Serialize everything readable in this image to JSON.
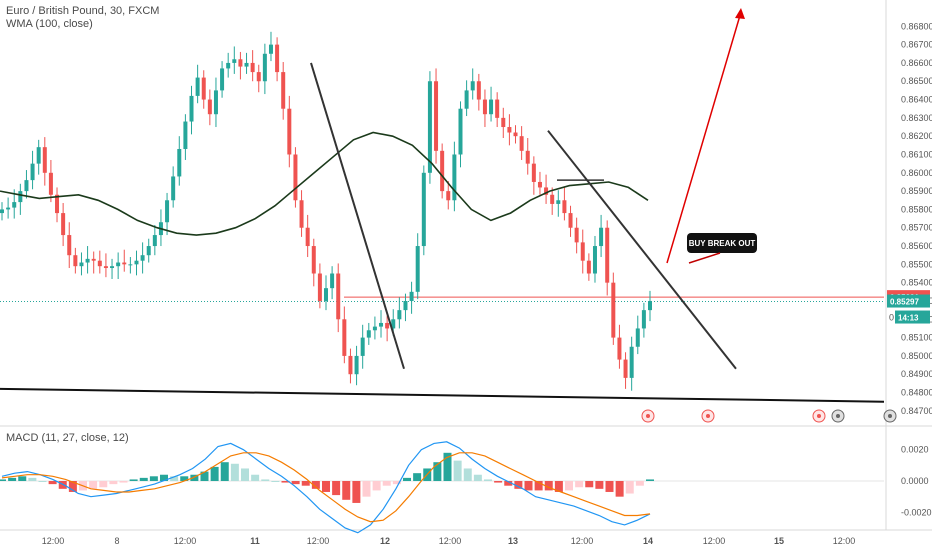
{
  "header": {
    "symbol_line": "Euro / British Pound, 30, FXCM",
    "indicator_line": "WMA (100, close)",
    "macd_label": "MACD (11, 27, close, 12)"
  },
  "annotation": {
    "callout": "BUY BREAK OUT"
  },
  "price_tags": {
    "red": "0.85321",
    "teal": "0.85297",
    "timer": "14:13",
    "timer_prefix": "0"
  },
  "colors": {
    "up": "#26a69a",
    "down": "#ef5350",
    "wma": "#1b3a1b",
    "macd": "#2196f3",
    "signal": "#f57c00",
    "trend": "#333333",
    "arrow": "#e00000",
    "red_tag": "#ef5350",
    "teal_tag": "#26a69a"
  },
  "icons": [
    "event-flag-icon",
    "event-flag-icon",
    "earnings-icon",
    "dividend-icon",
    "settings-icon"
  ],
  "chart_data": [
    {
      "type": "candlestick",
      "title": "Euro / British Pound, 30, FXCM",
      "ylim": [
        0.8465,
        0.869
      ],
      "y_ticks": [
        "0.86800",
        "0.86700",
        "0.86600",
        "0.86500",
        "0.86400",
        "0.86300",
        "0.86200",
        "0.86100",
        "0.86000",
        "0.85900",
        "0.85800",
        "0.85700",
        "0.85600",
        "0.85500",
        "0.85400",
        "0.85300",
        "0.85200",
        "0.85100",
        "0.85000",
        "0.84900",
        "0.84800",
        "0.84700"
      ],
      "x_ticks": [
        "12:00",
        "8",
        "12:00",
        "11",
        "12:00",
        "12",
        "12:00",
        "13",
        "12:00",
        "14",
        "12:00",
        "15",
        "12:00"
      ],
      "close_path": [
        0.858,
        0.8581,
        0.8584,
        0.859,
        0.8596,
        0.8605,
        0.8614,
        0.86,
        0.8588,
        0.8578,
        0.8566,
        0.8555,
        0.8549,
        0.8551,
        0.8553,
        0.8552,
        0.8549,
        0.8548,
        0.8549,
        0.8551,
        0.855,
        0.855,
        0.8552,
        0.8555,
        0.856,
        0.8566,
        0.8573,
        0.8585,
        0.8598,
        0.8613,
        0.8628,
        0.8642,
        0.8652,
        0.864,
        0.8632,
        0.8645,
        0.8657,
        0.866,
        0.8662,
        0.8658,
        0.866,
        0.8655,
        0.865,
        0.8665,
        0.867,
        0.8655,
        0.8635,
        0.861,
        0.8585,
        0.857,
        0.856,
        0.8545,
        0.853,
        0.8537,
        0.8545,
        0.852,
        0.85,
        0.849,
        0.85,
        0.851,
        0.8514,
        0.8516,
        0.8518,
        0.8515,
        0.852,
        0.8525,
        0.853,
        0.8535,
        0.856,
        0.86,
        0.865,
        0.8612,
        0.859,
        0.8585,
        0.861,
        0.8635,
        0.8645,
        0.865,
        0.864,
        0.8632,
        0.864,
        0.863,
        0.8625,
        0.8622,
        0.862,
        0.8612,
        0.8605,
        0.8595,
        0.8592,
        0.8588,
        0.8583,
        0.8585,
        0.8578,
        0.857,
        0.8562,
        0.8552,
        0.8545,
        0.856,
        0.857,
        0.854,
        0.851,
        0.8498,
        0.8488,
        0.8505,
        0.8515,
        0.8525,
        0.853
      ],
      "wma_path": [
        0.859,
        0.8588,
        0.8586,
        0.8587,
        0.8588,
        0.8585,
        0.858,
        0.8574,
        0.857,
        0.8567,
        0.8566,
        0.8567,
        0.857,
        0.8575,
        0.8582,
        0.8591,
        0.86,
        0.8609,
        0.8618,
        0.8622,
        0.862,
        0.8615,
        0.8605,
        0.8592,
        0.858,
        0.8574,
        0.8578,
        0.8585,
        0.859,
        0.8593,
        0.8594,
        0.8595,
        0.8592,
        0.8585
      ],
      "current_price": 0.85297,
      "last_price_line": 0.85321,
      "support_line": [
        [
          0.8482,
          0.8475
        ]
      ],
      "trendlines": [
        {
          "from": 0.866,
          "to": 0.8493
        },
        {
          "from": 0.8623,
          "to": 0.8493
        }
      ]
    },
    {
      "type": "bar",
      "title": "MACD (11, 27, close, 12)",
      "ylim": [
        -0.003,
        0.003
      ],
      "y_ticks": [
        "0.0020",
        "0.0000",
        "-0.0020"
      ],
      "histogram": [
        0.0001,
        0.0002,
        0.0003,
        0.0002,
        0.0,
        -0.0002,
        -0.0005,
        -0.0007,
        -0.0006,
        -0.0005,
        -0.0004,
        -0.0002,
        -0.0001,
        0.0001,
        0.0002,
        0.0003,
        0.0004,
        0.0003,
        0.0003,
        0.0004,
        0.0006,
        0.0009,
        0.0012,
        0.0011,
        0.0008,
        0.0004,
        0.0001,
        0.0,
        -0.0001,
        -0.0002,
        -0.0003,
        -0.0005,
        -0.0007,
        -0.0009,
        -0.0012,
        -0.0014,
        -0.001,
        -0.0006,
        -0.0003,
        -0.0002,
        0.0002,
        0.0005,
        0.0008,
        0.0012,
        0.0018,
        0.0013,
        0.0008,
        0.0004,
        0.0001,
        -0.0001,
        -0.0003,
        -0.0005,
        -0.0006,
        -0.0006,
        -0.0006,
        -0.0007,
        -0.0006,
        -0.0004,
        -0.0004,
        -0.0005,
        -0.0007,
        -0.001,
        -0.0008,
        -0.0003,
        0.0001
      ],
      "macd": [
        0.0003,
        0.0005,
        0.0006,
        0.0004,
        0.0001,
        -0.0003,
        -0.0008,
        -0.001,
        -0.0009,
        -0.0008,
        -0.0006,
        -0.0004,
        -0.0002,
        0.0001,
        0.0004,
        0.0008,
        0.0014,
        0.0022,
        0.0024,
        0.002,
        0.0014,
        0.0008,
        0.0003,
        -0.0003,
        -0.001,
        -0.0018,
        -0.0024,
        -0.003,
        -0.0033,
        -0.0028,
        -0.0018,
        -0.0005,
        0.001,
        0.002,
        0.0024,
        0.0025,
        0.0021,
        0.0014,
        0.0008,
        0.0003,
        -0.0001,
        -0.0005,
        -0.001,
        -0.0012,
        -0.0014,
        -0.0016,
        -0.0019,
        -0.0022,
        -0.0026,
        -0.0028,
        -0.0025,
        -0.0021
      ],
      "signal": [
        0.0002,
        0.0003,
        0.0004,
        0.0004,
        0.0003,
        0.0001,
        -0.0002,
        -0.0005,
        -0.0006,
        -0.0007,
        -0.0007,
        -0.0006,
        -0.0005,
        -0.0003,
        -0.0001,
        0.0002,
        0.0006,
        0.0011,
        0.0016,
        0.0018,
        0.0018,
        0.0016,
        0.0012,
        0.0007,
        0.0001,
        -0.0006,
        -0.0012,
        -0.0018,
        -0.0023,
        -0.0026,
        -0.0025,
        -0.0019,
        -0.001,
        0.0,
        0.0009,
        0.0015,
        0.0018,
        0.0018,
        0.0016,
        0.0012,
        0.0008,
        0.0004,
        0.0,
        -0.0004,
        -0.0007,
        -0.001,
        -0.0013,
        -0.0016,
        -0.0019,
        -0.0022,
        -0.0022,
        -0.0021
      ]
    }
  ]
}
